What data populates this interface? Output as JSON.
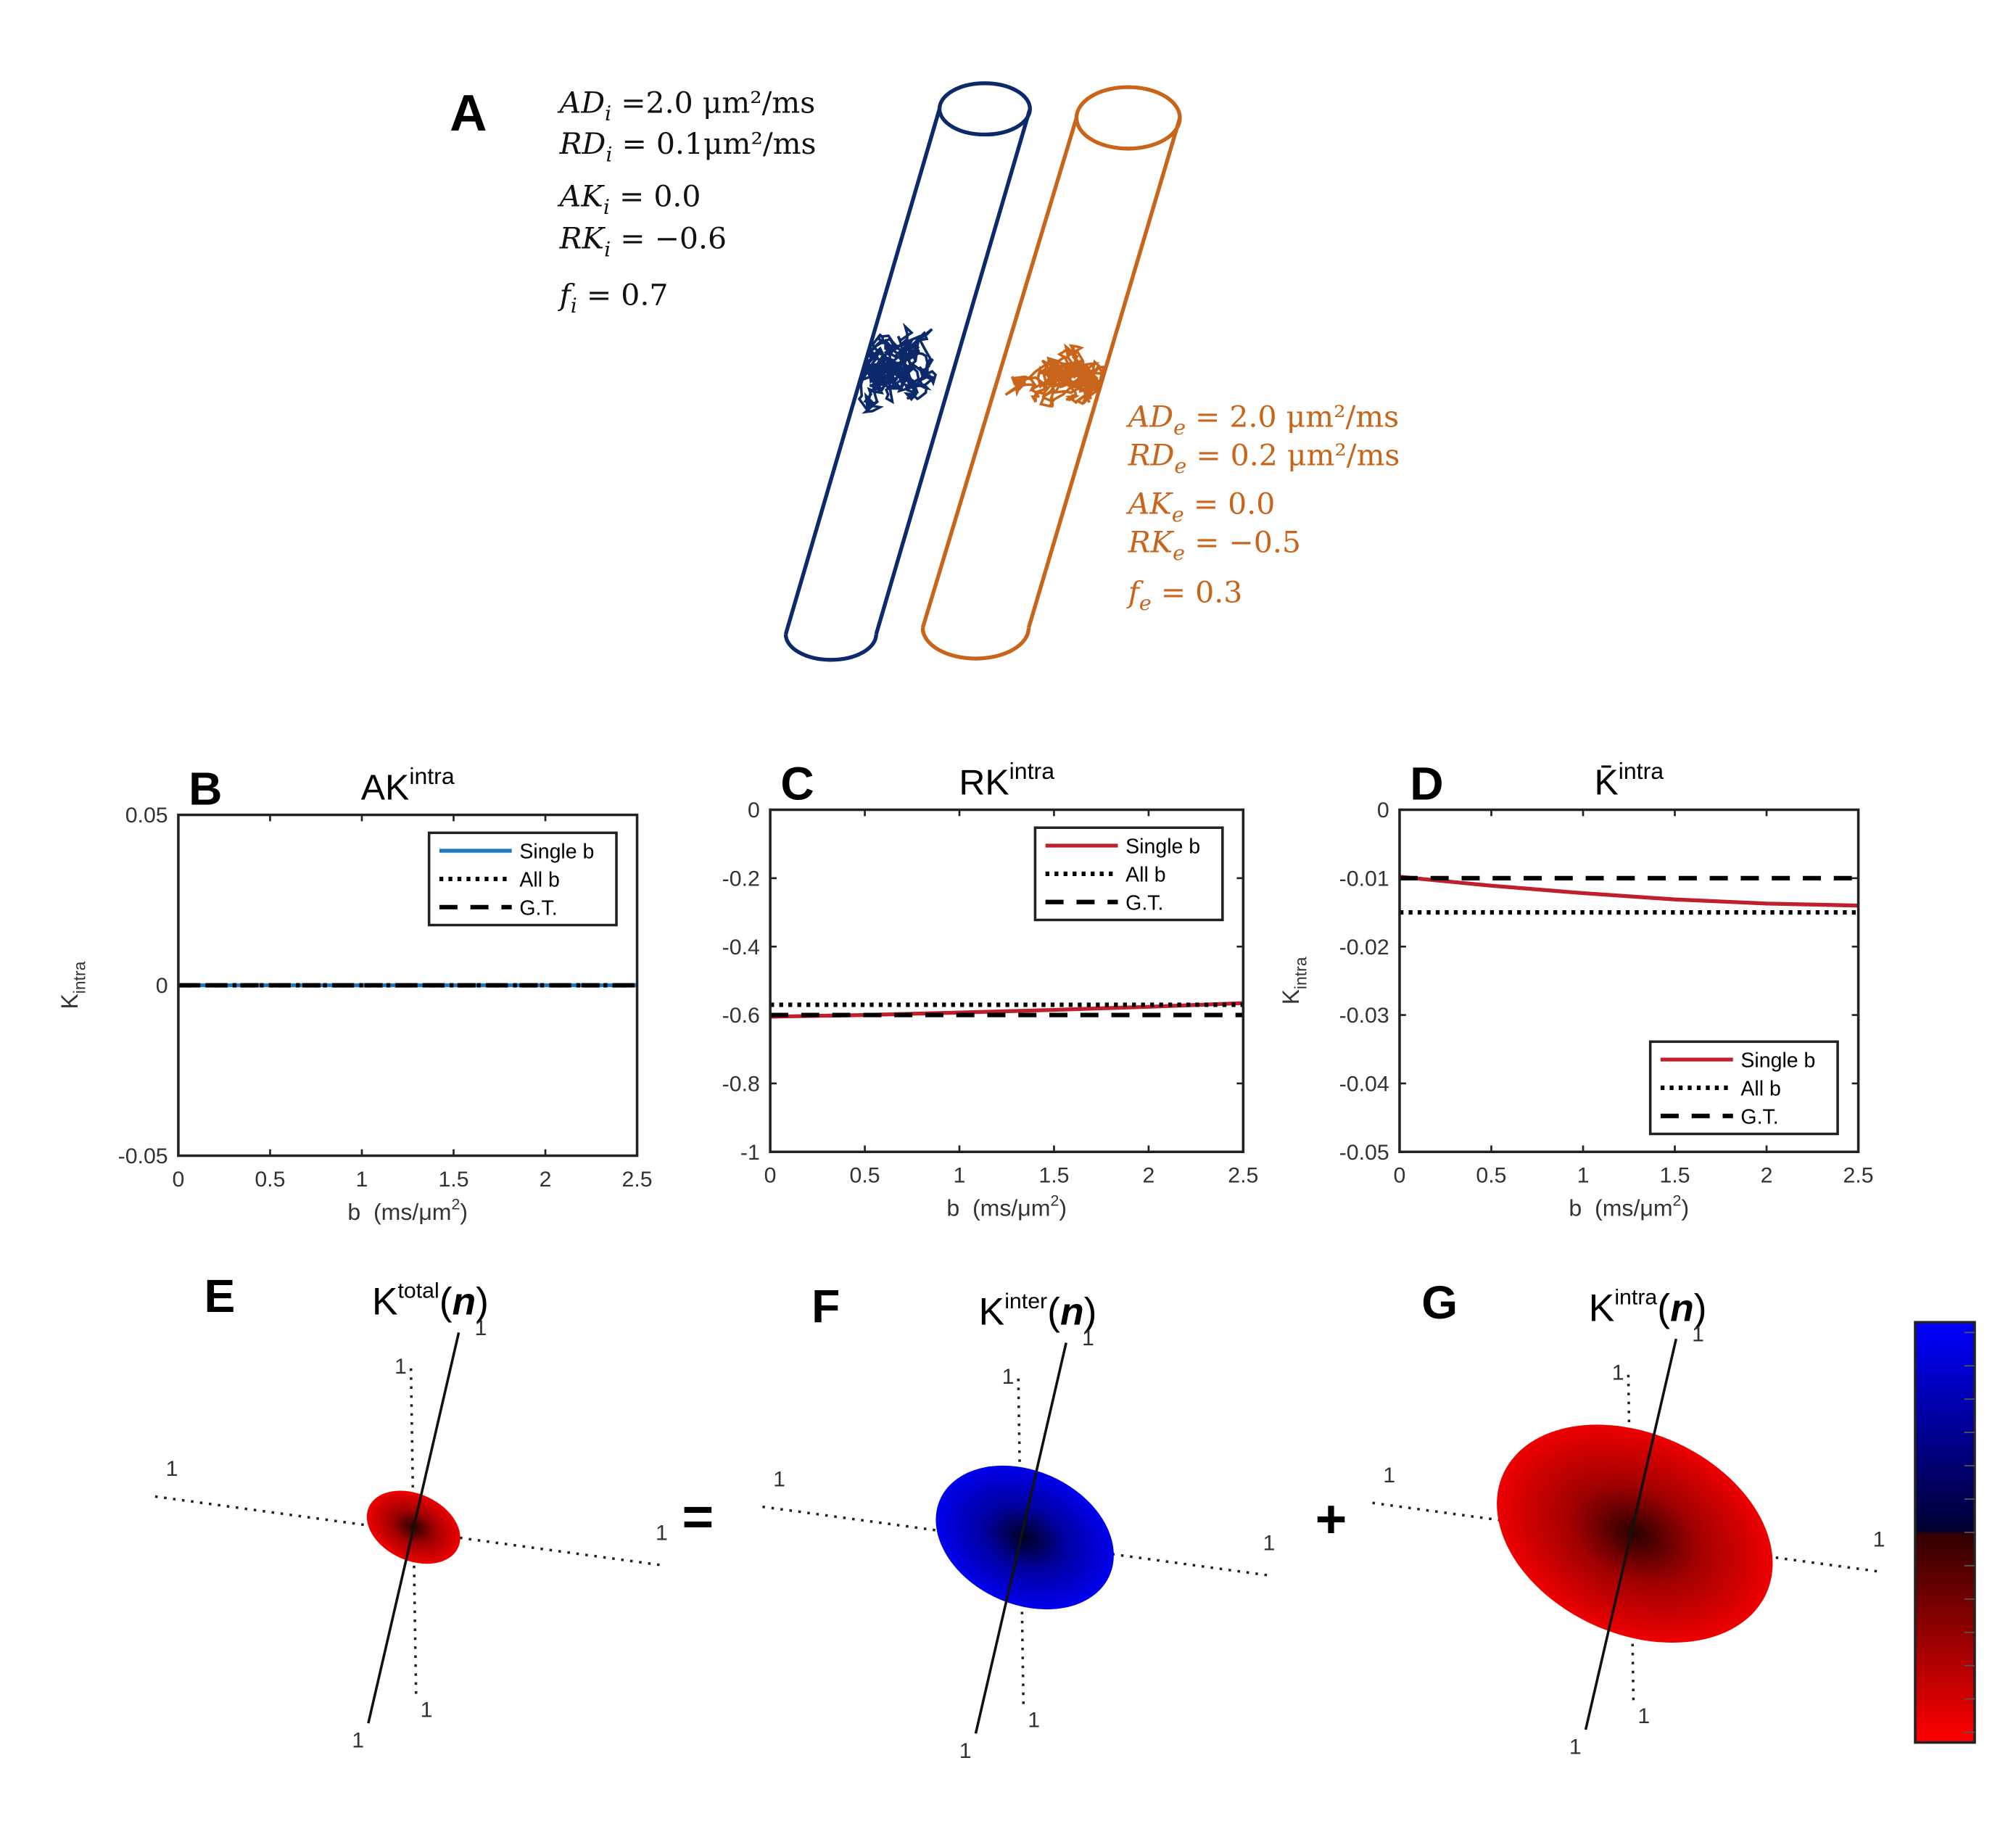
{
  "panel_a": {
    "letter": "A",
    "intra": [
      {
        "sym": "AD",
        "sub": "i",
        "rest": " =2.0 μm²/ms"
      },
      {
        "sym": "RD",
        "sub": "i",
        "rest": " = 0.1μm²/ms"
      },
      {
        "sym": "AK",
        "sub": "i",
        "rest": " = 0.0"
      },
      {
        "sym": "RK",
        "sub": "i",
        "rest": " = −0.6"
      },
      {
        "sym": "f",
        "sub": "i",
        "rest": " = 0.7"
      }
    ],
    "extra": [
      {
        "sym": "AD",
        "sub": "e",
        "rest": " = 2.0 μm²/ms"
      },
      {
        "sym": "RD",
        "sub": "e",
        "rest": " = 0.2 μm²/ms"
      },
      {
        "sym": "AK",
        "sub": "e",
        "rest": " = 0.0"
      },
      {
        "sym": "RK",
        "sub": "e",
        "rest": " = −0.5"
      },
      {
        "sym": "f",
        "sub": "e",
        "rest": " = 0.3"
      }
    ]
  },
  "chart_data": [
    {
      "type": "line",
      "letter": "B",
      "title": "AK",
      "title_sup": "intra",
      "ylabel": "K",
      "ylabel_sub": "intra",
      "xlabel": "b  (ms/μm",
      "xlabel_sup": "2",
      "xlabel_end": ")",
      "x": [
        0,
        0.5,
        1,
        1.5,
        2,
        2.5
      ],
      "xlim": [
        0,
        2.5
      ],
      "xticks": [
        0,
        0.5,
        1,
        1.5,
        2,
        2.5
      ],
      "ylim": [
        -0.05,
        0.05
      ],
      "yticks": [
        -0.05,
        0,
        0.05
      ],
      "legend": "upper right",
      "series": [
        {
          "name": "Single b",
          "color": "#1f77bf",
          "style": "solid",
          "values": [
            0,
            0,
            0,
            0,
            0,
            0
          ]
        },
        {
          "name": "All b",
          "color": "#000000",
          "style": "dotted",
          "values": [
            0,
            0,
            0,
            0,
            0,
            0
          ]
        },
        {
          "name": "G.T.",
          "color": "#000000",
          "style": "dashed",
          "values": [
            0,
            0,
            0,
            0,
            0,
            0
          ]
        }
      ]
    },
    {
      "type": "line",
      "letter": "C",
      "title": "RK",
      "title_sup": "intra",
      "xlabel": "b  (ms/μm",
      "xlabel_sup": "2",
      "xlabel_end": ")",
      "x": [
        0,
        0.5,
        1,
        1.5,
        2,
        2.5
      ],
      "xlim": [
        0,
        2.5
      ],
      "xticks": [
        0,
        0.5,
        1,
        1.5,
        2,
        2.5
      ],
      "ylim": [
        -1,
        0
      ],
      "yticks": [
        0,
        -0.2,
        -0.4,
        -0.6,
        -0.8,
        -1
      ],
      "legend": "upper right",
      "series": [
        {
          "name": "Single b",
          "color": "#c0202c",
          "style": "solid",
          "values": [
            -0.605,
            -0.6,
            -0.593,
            -0.585,
            -0.576,
            -0.565
          ]
        },
        {
          "name": "All b",
          "color": "#000000",
          "style": "dotted",
          "values": [
            -0.57,
            -0.57,
            -0.57,
            -0.57,
            -0.57,
            -0.57
          ]
        },
        {
          "name": "G.T.",
          "color": "#000000",
          "style": "dashed",
          "values": [
            -0.6,
            -0.6,
            -0.6,
            -0.6,
            -0.6,
            -0.6
          ]
        }
      ]
    },
    {
      "type": "line",
      "letter": "D",
      "title": "K̄",
      "title_sup": "intra",
      "ylabel": "K",
      "ylabel_sub": "intra",
      "xlabel": "b  (ms/μm",
      "xlabel_sup": "2",
      "xlabel_end": ")",
      "x": [
        0,
        0.5,
        1,
        1.5,
        2,
        2.5
      ],
      "xlim": [
        0,
        2.5
      ],
      "xticks": [
        0,
        0.5,
        1,
        1.5,
        2,
        2.5
      ],
      "ylim": [
        -0.05,
        0
      ],
      "yticks": [
        0,
        -0.01,
        -0.02,
        -0.03,
        -0.04,
        -0.05
      ],
      "legend": "lower right",
      "series": [
        {
          "name": "Single b",
          "color": "#c0202c",
          "style": "solid",
          "values": [
            -0.0098,
            -0.0111,
            -0.0122,
            -0.0131,
            -0.0137,
            -0.014
          ]
        },
        {
          "name": "All b",
          "color": "#000000",
          "style": "dotted",
          "values": [
            -0.015,
            -0.015,
            -0.015,
            -0.015,
            -0.015,
            -0.015
          ]
        },
        {
          "name": "G.T.",
          "color": "#000000",
          "style": "dashed",
          "values": [
            -0.01,
            -0.01,
            -0.01,
            -0.01,
            -0.01,
            -0.01
          ]
        }
      ]
    }
  ],
  "surfaces": [
    {
      "letter": "E",
      "k": "K",
      "sup": "total",
      "open": "(",
      "n": "n",
      "close": ")",
      "axis_labels": [
        "1",
        "1",
        "1",
        "1",
        "1",
        "1"
      ]
    },
    {
      "letter": "F",
      "k": "K",
      "sup": "inter",
      "open": "(",
      "n": "n",
      "close": ")",
      "axis_labels": [
        "1",
        "1",
        "1",
        "1",
        "1",
        "1"
      ]
    },
    {
      "letter": "G",
      "k": "K",
      "sup": "intra",
      "open": "(",
      "n": "n",
      "close": ")",
      "axis_labels": [
        "1",
        "1",
        "1",
        "1",
        "1",
        "1"
      ]
    }
  ],
  "operators": [
    "=",
    "+"
  ]
}
